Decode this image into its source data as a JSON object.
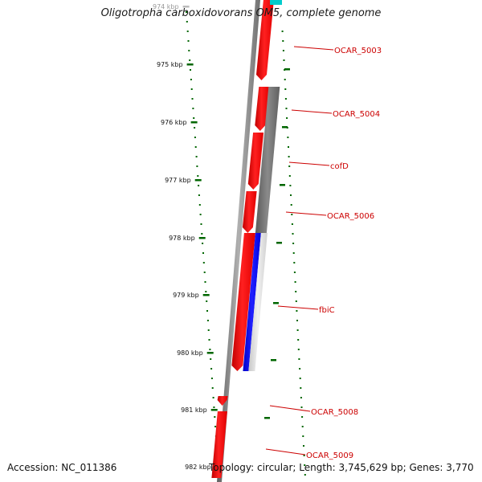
{
  "title": "Oligotropha carboxidovorans OM5, complete genome",
  "footer": {
    "accession_label": "Accession:",
    "accession": "NC_011386",
    "topology": "Topology: circular",
    "length": "Length: 3,745,629 bp",
    "genes": "Genes: 3,770"
  },
  "colors": {
    "forward_gene": "#ff0000",
    "reverse_gene": "#6e6e6e",
    "highlight_gene": "#0000ff",
    "top_gene": "#00cccc",
    "ruler_ticks": "#006600",
    "gene_label": "#cc0000",
    "backbone": "#808080"
  },
  "ruler": {
    "unit": "kbp",
    "labels": [
      "974 kbp",
      "975 kbp",
      "976 kbp",
      "977 kbp",
      "978 kbp",
      "979 kbp",
      "980 kbp",
      "981 kbp",
      "982 kbp"
    ]
  },
  "gene_labels": [
    "OCAR_5003",
    "OCAR_5004",
    "cofD",
    "OCAR_5006",
    "fbiC",
    "OCAR_5008",
    "OCAR_5009"
  ]
}
